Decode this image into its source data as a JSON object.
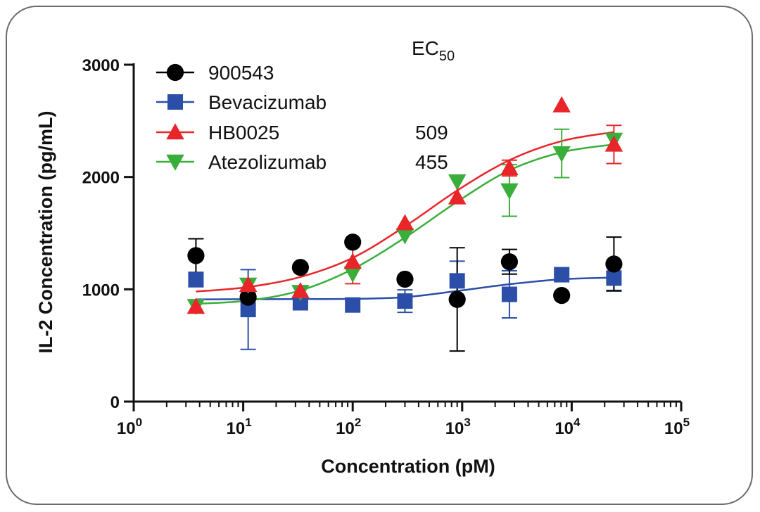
{
  "chart_data": {
    "type": "scatter",
    "xlabel": "Concentration (pM)",
    "ylabel": "IL-2 Concentration (pg/mL)",
    "xscale": "log",
    "xlim": [
      1,
      100000
    ],
    "ylim": [
      0,
      3000
    ],
    "x_tick_base": "10",
    "x_ticks": [
      {
        "value": 1,
        "exp": "0"
      },
      {
        "value": 10,
        "exp": "1"
      },
      {
        "value": 100,
        "exp": "2"
      },
      {
        "value": 1000,
        "exp": "3"
      },
      {
        "value": 10000,
        "exp": "4"
      },
      {
        "value": 100000,
        "exp": "5"
      }
    ],
    "y_ticks": [
      {
        "value": 0,
        "label": "0"
      },
      {
        "value": 1000,
        "label": "1000"
      },
      {
        "value": 2000,
        "label": "2000"
      },
      {
        "value": 3000,
        "label": "3000"
      }
    ],
    "grid": false,
    "legend_placement": "top-left",
    "ec50_header": {
      "base": "EC",
      "sub": "50"
    },
    "series": [
      {
        "name": "900543",
        "color": "#000000",
        "marker": "circle",
        "ec50": "",
        "fit": [],
        "points": [
          {
            "x": 3.7,
            "y": 1300,
            "err": 150
          },
          {
            "x": 11.1,
            "y": 930,
            "err": 0
          },
          {
            "x": 33.3,
            "y": 1195,
            "err": 0
          },
          {
            "x": 100,
            "y": 1420,
            "err": 0
          },
          {
            "x": 300,
            "y": 1090,
            "err": 0
          },
          {
            "x": 900,
            "y": 910,
            "err": 460
          },
          {
            "x": 2700,
            "y": 1245,
            "err": 110
          },
          {
            "x": 8100,
            "y": 945,
            "err": 0
          },
          {
            "x": 24300,
            "y": 1225,
            "err": 240
          }
        ]
      },
      {
        "name": "Bevacizumab",
        "color": "#2b4ea8",
        "marker": "square",
        "ec50": "",
        "fit": [
          [
            3.7,
            910
          ],
          [
            11.1,
            912
          ],
          [
            33.3,
            913
          ],
          [
            100,
            915
          ],
          [
            300,
            930
          ],
          [
            900,
            985
          ],
          [
            2700,
            1045
          ],
          [
            8100,
            1090
          ],
          [
            24300,
            1105
          ]
        ],
        "points": [
          {
            "x": 3.7,
            "y": 1085,
            "err": 0
          },
          {
            "x": 11.1,
            "y": 820,
            "err": 355
          },
          {
            "x": 33.3,
            "y": 880,
            "err": 0
          },
          {
            "x": 100,
            "y": 860,
            "err": 0
          },
          {
            "x": 300,
            "y": 895,
            "err": 100
          },
          {
            "x": 900,
            "y": 1075,
            "err": 175
          },
          {
            "x": 2700,
            "y": 955,
            "err": 210
          },
          {
            "x": 8100,
            "y": 1130,
            "err": 0
          },
          {
            "x": 24300,
            "y": 1100,
            "err": 110
          }
        ]
      },
      {
        "name": "HB0025",
        "color": "#e8262a",
        "marker": "triangle-up",
        "ec50": "509",
        "fit": [
          [
            3.7,
            980
          ],
          [
            11.1,
            1020
          ],
          [
            33.3,
            1110
          ],
          [
            100,
            1280
          ],
          [
            300,
            1560
          ],
          [
            900,
            1880
          ],
          [
            2700,
            2150
          ],
          [
            8100,
            2320
          ],
          [
            24300,
            2400
          ]
        ],
        "points": [
          {
            "x": 3.7,
            "y": 845,
            "err": 0
          },
          {
            "x": 11.1,
            "y": 1040,
            "err": 0
          },
          {
            "x": 33.3,
            "y": 985,
            "err": 0
          },
          {
            "x": 100,
            "y": 1245,
            "err": 195
          },
          {
            "x": 300,
            "y": 1590,
            "err": 0
          },
          {
            "x": 900,
            "y": 1820,
            "err": 0
          },
          {
            "x": 2700,
            "y": 2080,
            "err": 70
          },
          {
            "x": 8100,
            "y": 2640,
            "err": 0
          },
          {
            "x": 24300,
            "y": 2290,
            "err": 170
          }
        ]
      },
      {
        "name": "Atezolizumab",
        "color": "#3aae3a",
        "marker": "triangle-down",
        "ec50": "455",
        "fit": [
          [
            3.7,
            870
          ],
          [
            11.1,
            900
          ],
          [
            33.3,
            990
          ],
          [
            100,
            1180
          ],
          [
            300,
            1460
          ],
          [
            900,
            1780
          ],
          [
            2700,
            2060
          ],
          [
            8100,
            2220
          ],
          [
            24300,
            2290
          ]
        ],
        "points": [
          {
            "x": 3.7,
            "y": 850,
            "err": 0
          },
          {
            "x": 11.1,
            "y": 1040,
            "err": 0
          },
          {
            "x": 33.3,
            "y": 975,
            "err": 0
          },
          {
            "x": 100,
            "y": 1140,
            "err": 0
          },
          {
            "x": 300,
            "y": 1480,
            "err": 0
          },
          {
            "x": 900,
            "y": 1960,
            "err": 0
          },
          {
            "x": 2700,
            "y": 1880,
            "err": 230
          },
          {
            "x": 8100,
            "y": 2210,
            "err": 215
          },
          {
            "x": 24300,
            "y": 2330,
            "err": 0
          }
        ]
      }
    ]
  }
}
